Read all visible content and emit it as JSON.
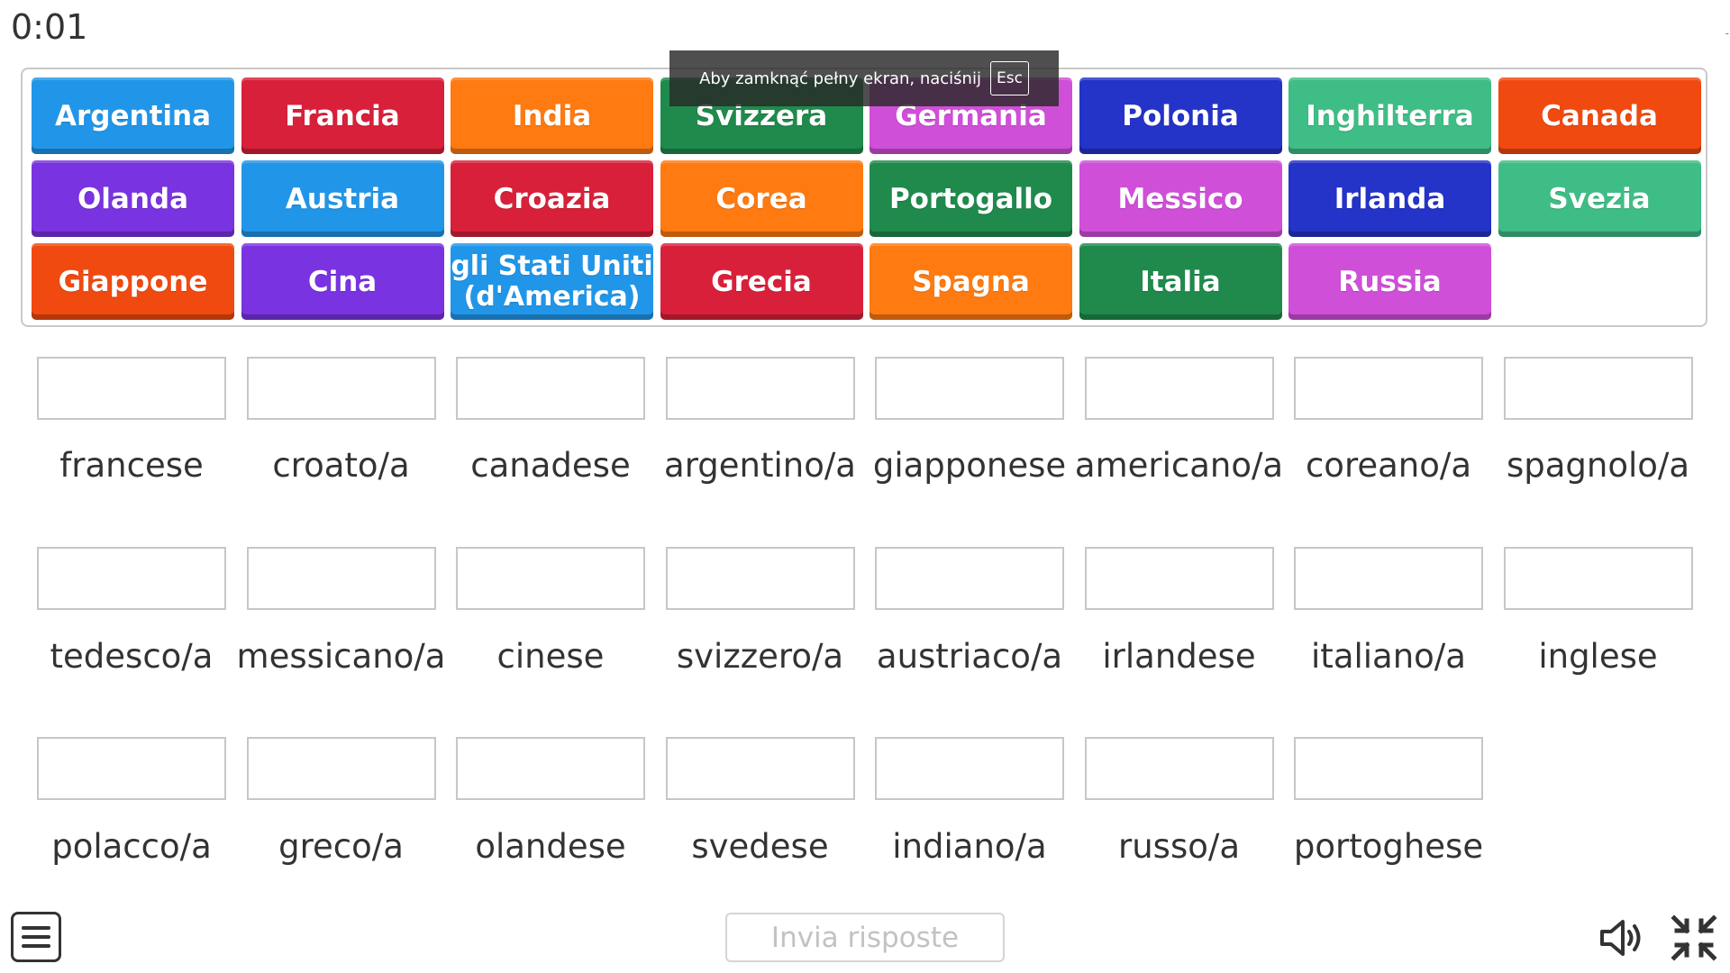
{
  "timer": "0:01",
  "toast": {
    "message": "Aby zamknąć pełny ekran, naciśnij",
    "key": "Esc"
  },
  "tiles": [
    {
      "label": "Argentina",
      "color": "#2196e8"
    },
    {
      "label": "Francia",
      "color": "#d9203a"
    },
    {
      "label": "India",
      "color": "#ff7a10"
    },
    {
      "label": "Svizzera",
      "color": "#1f8a4c"
    },
    {
      "label": "Germania",
      "color": "#cf4fd8"
    },
    {
      "label": "Polonia",
      "color": "#2433c8"
    },
    {
      "label": "Inghilterra",
      "color": "#3fbd86"
    },
    {
      "label": "Canada",
      "color": "#f04a10"
    },
    {
      "label": "Olanda",
      "color": "#7a33e0"
    },
    {
      "label": "Austria",
      "color": "#2196e8"
    },
    {
      "label": "Croazia",
      "color": "#d9203a"
    },
    {
      "label": "Corea",
      "color": "#ff7a10"
    },
    {
      "label": "Portogallo",
      "color": "#1f8a4c"
    },
    {
      "label": "Messico",
      "color": "#cf4fd8"
    },
    {
      "label": "Irlanda",
      "color": "#2433c8"
    },
    {
      "label": "Svezia",
      "color": "#3fbd86"
    },
    {
      "label": "Giappone",
      "color": "#f04a10"
    },
    {
      "label": "Cina",
      "color": "#7a33e0"
    },
    {
      "label": "gli Stati Uniti (d'America)",
      "color": "#2196e8"
    },
    {
      "label": "Grecia",
      "color": "#d9203a"
    },
    {
      "label": "Spagna",
      "color": "#ff7a10"
    },
    {
      "label": "Italia",
      "color": "#1f8a4c"
    },
    {
      "label": "Russia",
      "color": "#cf4fd8"
    }
  ],
  "answers": [
    "francese",
    "croato/a",
    "canadese",
    "argentino/a",
    "giapponese",
    "americano/a",
    "coreano/a",
    "spagnolo/a",
    "tedesco/a",
    "messicano/a",
    "cinese",
    "svizzero/a",
    "austriaco/a",
    "irlandese",
    "italiano/a",
    "inglese",
    "polacco/a",
    "greco/a",
    "olandese",
    "svedese",
    "indiano/a",
    "russo/a",
    "portoghese"
  ],
  "submit_label": "Invia risposte"
}
